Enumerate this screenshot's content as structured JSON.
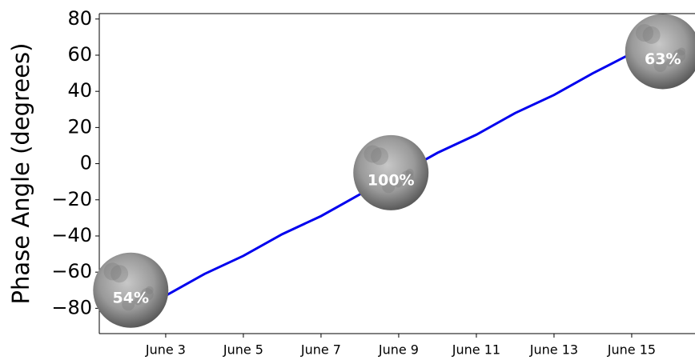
{
  "chart_data": {
    "type": "line",
    "y_label": "Phase Angle (degrees)",
    "x": [
      2.1,
      3,
      4,
      5,
      6,
      7,
      8,
      9,
      10,
      11,
      12,
      13,
      14,
      15,
      15.6
    ],
    "series": [
      {
        "name": "Phase Angle",
        "color": "#0000ee",
        "values": [
          -78,
          -73,
          -61,
          -51,
          -39,
          -29,
          -17,
          -6,
          6,
          16,
          28,
          38,
          50,
          61,
          67
        ]
      }
    ],
    "xlim": [
      1.29,
      16.63
    ],
    "xticks": [
      {
        "value": 3,
        "label": "June 3"
      },
      {
        "value": 5,
        "label": "June 5"
      },
      {
        "value": 7,
        "label": "June 7"
      },
      {
        "value": 9,
        "label": "June 9"
      },
      {
        "value": 11,
        "label": "June 11"
      },
      {
        "value": 13,
        "label": "June 13"
      },
      {
        "value": 15,
        "label": "June 15"
      }
    ],
    "ylim": [
      -94,
      83
    ],
    "yticks": [
      {
        "value": -80,
        "label": "−80"
      },
      {
        "value": -60,
        "label": "−60"
      },
      {
        "value": -40,
        "label": "−40"
      },
      {
        "value": -20,
        "label": "−20"
      },
      0,
      20,
      40,
      60,
      80
    ],
    "annotations": [
      {
        "text": "54%",
        "x": 2.1,
        "y": -70
      },
      {
        "text": "100%",
        "x": 8.8,
        "y": -5
      },
      {
        "text": "63%",
        "x": 15.8,
        "y": 62
      }
    ]
  }
}
